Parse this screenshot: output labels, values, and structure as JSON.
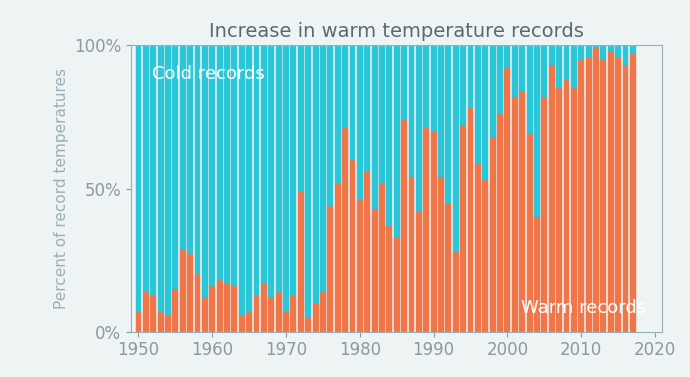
{
  "chart_data": {
    "type": "bar",
    "stacked": true,
    "title": "Increase in warm temperature records",
    "y_label": "Percent of record temperatures",
    "x": [
      1950,
      1951,
      1952,
      1953,
      1954,
      1955,
      1956,
      1957,
      1958,
      1959,
      1960,
      1961,
      1962,
      1963,
      1964,
      1965,
      1966,
      1967,
      1968,
      1969,
      1970,
      1971,
      1972,
      1973,
      1974,
      1975,
      1976,
      1977,
      1978,
      1979,
      1980,
      1981,
      1982,
      1983,
      1984,
      1985,
      1986,
      1987,
      1988,
      1989,
      1990,
      1991,
      1992,
      1993,
      1994,
      1995,
      1996,
      1997,
      1998,
      1999,
      2000,
      2001,
      2002,
      2003,
      2004,
      2005,
      2006,
      2007,
      2008,
      2009,
      2010,
      2011,
      2012,
      2013,
      2014,
      2015,
      2016,
      2017
    ],
    "series": [
      {
        "name": "Warm records",
        "color": "#f0764a",
        "values": [
          7,
          14,
          13,
          7,
          6,
          15,
          29,
          27,
          20,
          12,
          16,
          18,
          17,
          16,
          6,
          7,
          13,
          17,
          12,
          14,
          7,
          13,
          49,
          5,
          10,
          14,
          44,
          52,
          71,
          60,
          46,
          56,
          43,
          52,
          37,
          33,
          74,
          54,
          42,
          71,
          70,
          54,
          45,
          28,
          72,
          78,
          59,
          53,
          68,
          76,
          92,
          82,
          84,
          69,
          40,
          82,
          93,
          85,
          88,
          85,
          95,
          96,
          99,
          95,
          98,
          96,
          93,
          97
        ]
      },
      {
        "name": "Cold records",
        "color": "#2cc6d9",
        "values": [
          93,
          86,
          87,
          93,
          94,
          85,
          71,
          73,
          80,
          88,
          84,
          82,
          83,
          84,
          94,
          93,
          87,
          83,
          88,
          86,
          93,
          87,
          51,
          95,
          90,
          86,
          56,
          48,
          29,
          40,
          54,
          44,
          57,
          48,
          63,
          67,
          26,
          46,
          58,
          29,
          30,
          46,
          55,
          72,
          28,
          22,
          41,
          47,
          32,
          24,
          8,
          18,
          16,
          31,
          60,
          18,
          7,
          15,
          12,
          15,
          5,
          4,
          1,
          5,
          2,
          4,
          7,
          3
        ]
      }
    ],
    "xlim": [
      1949,
      2021
    ],
    "xticks": [
      1950,
      1960,
      1970,
      1980,
      1990,
      2000,
      2010,
      2020
    ],
    "ylim": [
      0,
      100
    ],
    "yticks": [
      {
        "value": 0,
        "label": "0%"
      },
      {
        "value": 50,
        "label": "50%"
      },
      {
        "value": 100,
        "label": "100%"
      }
    ],
    "grid": false
  }
}
